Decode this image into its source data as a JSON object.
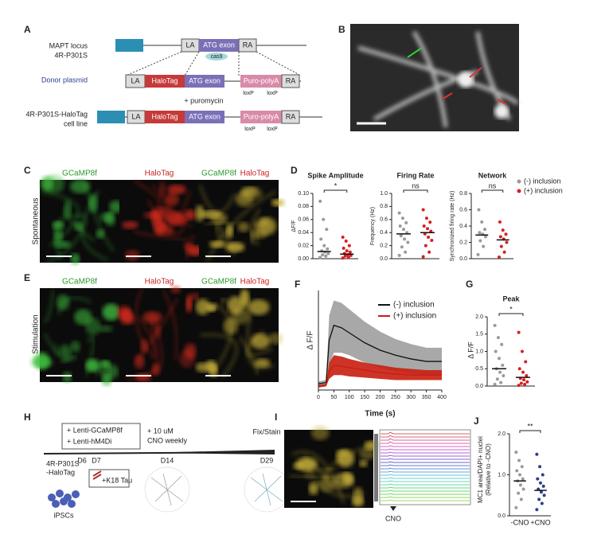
{
  "A": {
    "letter": "A",
    "locus_label": [
      "MAPT locus",
      "4R-P301S"
    ],
    "donor_label": "Donor plasmid",
    "line_label": [
      "4R-P301S-HaloTag",
      "cell line"
    ],
    "la": "LA",
    "atg": "ATG exon",
    "ra": "RA",
    "halo": "HaloTag",
    "puro": "Puro-polyA",
    "cas9": "cas9",
    "loxp": "loxP",
    "puromycin": "+ puromycin"
  },
  "B": {
    "letter": "B"
  },
  "C": {
    "letter": "C",
    "side": "Spontaneous",
    "green": "GCaMP8f",
    "red": "HaloTag"
  },
  "D": {
    "letter": "D",
    "legend": [
      "(-) inclusion",
      "(+) inclusion"
    ],
    "colors": [
      "#9a9a9a",
      "#d62020"
    ],
    "charts": [
      {
        "title": "Spike Amplitude",
        "ylabel": "ΔF/F",
        "ylim": [
          0,
          0.1
        ],
        "yticks": [
          {
            "value": 0,
            "label": "0.00"
          },
          {
            "value": 0.02,
            "label": "0.02"
          },
          {
            "value": 0.04,
            "label": "0.04"
          },
          {
            "value": 0.06,
            "label": "0.06"
          },
          {
            "value": 0.08,
            "label": "0.08"
          },
          {
            "value": 0.1,
            "label": "0.10"
          }
        ],
        "means": [
          0.011,
          0.007
        ],
        "sig": "*",
        "points": [
          [
            0.002,
            0.004,
            0.006,
            0.008,
            0.01,
            0.012,
            0.015,
            0.02,
            0.03,
            0.045,
            0.06,
            0.088
          ],
          [
            0.001,
            0.002,
            0.004,
            0.005,
            0.006,
            0.008,
            0.01,
            0.012,
            0.016,
            0.02,
            0.027,
            0.033
          ]
        ]
      },
      {
        "title": "Firing Rate",
        "ylabel": "Frequency (Hz)",
        "ylim": [
          0,
          1
        ],
        "yticks": [
          {
            "value": 0,
            "label": "0.0"
          },
          0.2,
          0.4,
          0.6,
          0.8,
          {
            "value": 1,
            "label": "1.0"
          }
        ],
        "means": [
          0.38,
          0.4
        ],
        "sig": "ns",
        "points": [
          [
            0.05,
            0.1,
            0.18,
            0.25,
            0.3,
            0.35,
            0.4,
            0.45,
            0.5,
            0.55,
            0.62,
            0.7
          ],
          [
            0.03,
            0.1,
            0.2,
            0.28,
            0.33,
            0.38,
            0.42,
            0.46,
            0.5,
            0.56,
            0.62,
            0.75
          ]
        ]
      },
      {
        "title": "Network",
        "ylabel": "Synchronized firing rate (Hz)",
        "ylim": [
          0,
          0.8
        ],
        "yticks": [
          {
            "value": 0,
            "label": "0.0"
          },
          0.2,
          0.4,
          0.6,
          0.8
        ],
        "means": [
          0.29,
          0.23
        ],
        "sig": "ns",
        "points": [
          [
            0.05,
            0.15,
            0.22,
            0.27,
            0.3,
            0.32,
            0.36,
            0.45,
            0.6
          ],
          [
            0.02,
            0.08,
            0.15,
            0.2,
            0.24,
            0.27,
            0.3,
            0.35,
            0.45
          ]
        ]
      }
    ]
  },
  "E": {
    "letter": "E",
    "side": "Stimulation",
    "green": "GCaMP8f",
    "red": "HaloTag"
  },
  "F": {
    "letter": "F",
    "ylabel": "Δ F/F",
    "xlabel": "Time (s)",
    "xlim": [
      0,
      400
    ],
    "ylim": [
      0,
      0.8
    ],
    "xticks": [
      0,
      50,
      100,
      150,
      200,
      250,
      300,
      350,
      400
    ],
    "x": [
      0,
      25,
      35,
      50,
      75,
      100,
      150,
      200,
      250,
      300,
      350,
      400
    ],
    "series": [
      {
        "name": "(-) inclusion",
        "color": "#111111",
        "band": "#a8a8a8",
        "values": [
          0.05,
          0.06,
          0.4,
          0.52,
          0.5,
          0.46,
          0.38,
          0.32,
          0.28,
          0.25,
          0.23,
          0.23
        ],
        "lower": [
          0.03,
          0.04,
          0.2,
          0.3,
          0.3,
          0.28,
          0.22,
          0.18,
          0.15,
          0.13,
          0.12,
          0.12
        ],
        "upper": [
          0.07,
          0.08,
          0.6,
          0.72,
          0.7,
          0.65,
          0.55,
          0.47,
          0.41,
          0.37,
          0.34,
          0.34
        ]
      },
      {
        "name": "(+) inclusion",
        "color": "#c81e10",
        "band": "#c81e10",
        "values": [
          0.03,
          0.04,
          0.15,
          0.2,
          0.19,
          0.18,
          0.16,
          0.14,
          0.13,
          0.12,
          0.12,
          0.12
        ],
        "lower": [
          0.02,
          0.03,
          0.09,
          0.12,
          0.12,
          0.11,
          0.1,
          0.09,
          0.08,
          0.08,
          0.08,
          0.08
        ],
        "upper": [
          0.04,
          0.05,
          0.22,
          0.28,
          0.27,
          0.25,
          0.22,
          0.2,
          0.18,
          0.17,
          0.16,
          0.16
        ]
      }
    ]
  },
  "G": {
    "letter": "G",
    "title": "Peak",
    "ylabel": "Δ F/F",
    "ylim": [
      0,
      2
    ],
    "yticks": [
      {
        "value": 0,
        "label": "0.0"
      },
      0.5,
      {
        "value": 1,
        "label": "1.0"
      },
      1.5,
      {
        "value": 2,
        "label": "2.0"
      }
    ],
    "means": [
      0.5,
      0.25
    ],
    "sig": "*",
    "colors": [
      "#9a9a9a",
      "#d62020"
    ],
    "points": [
      [
        0.05,
        0.1,
        0.2,
        0.3,
        0.4,
        0.5,
        0.6,
        0.8,
        1.0,
        1.2,
        1.4,
        1.75
      ],
      [
        0.02,
        0.05,
        0.08,
        0.12,
        0.18,
        0.22,
        0.3,
        0.4,
        0.5,
        0.7,
        1.0,
        1.55
      ]
    ]
  },
  "H": {
    "letter": "H",
    "lenti": [
      "+ Lenti-GCaMP8f",
      "+ Lenti-hM4Di"
    ],
    "cno": [
      "+ 10 uM",
      "CNO weekly"
    ],
    "fix": "Fix/Stain",
    "line": [
      "4R-P301S",
      "-HaloTag"
    ],
    "days": [
      "D6",
      "D7",
      "D14",
      "D29"
    ],
    "tau": "+K18 Tau",
    "ipsc": "iPSCs"
  },
  "I": {
    "letter": "I",
    "cno": "CNO"
  },
  "J": {
    "letter": "J",
    "ylabel": [
      "MC1 area/DAPI+ nuclei",
      "(Relative to -CNO)"
    ],
    "categories": [
      "-CNO",
      "+CNO"
    ],
    "ylim": [
      0,
      2
    ],
    "yticks": [
      {
        "value": 0,
        "label": "0.0"
      },
      {
        "value": 1,
        "label": "1.0"
      },
      {
        "value": 2,
        "label": "2.0"
      }
    ],
    "means": [
      0.85,
      0.62
    ],
    "sig": "**",
    "colors": [
      "#9a9a9a",
      "#2b3f8f"
    ],
    "points": [
      [
        0.2,
        0.4,
        0.55,
        0.65,
        0.75,
        0.85,
        0.9,
        1.0,
        1.1,
        1.2,
        1.35,
        1.55
      ],
      [
        0.15,
        0.3,
        0.4,
        0.5,
        0.58,
        0.65,
        0.72,
        0.8,
        0.9,
        1.0,
        1.2,
        1.5
      ]
    ]
  }
}
